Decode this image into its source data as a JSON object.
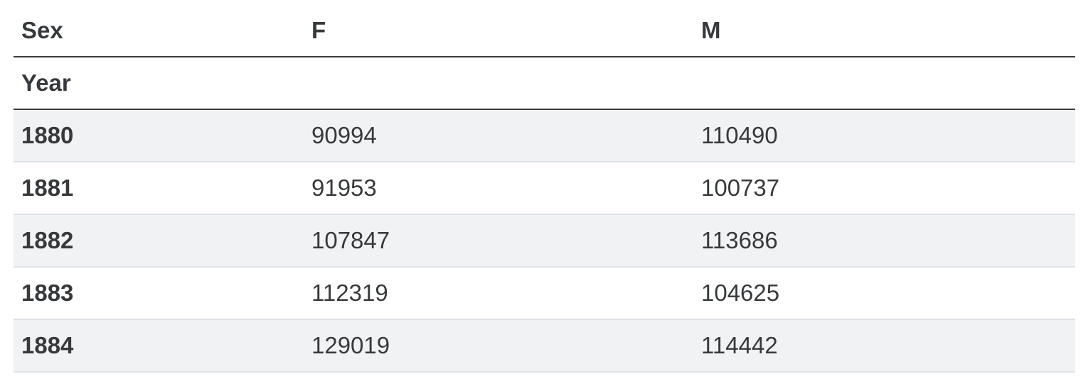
{
  "colors": {
    "text": "#373a3c",
    "dark_border": "#3b3b3d",
    "light_border": "#dee2e6",
    "stripe": "#f1f2f3",
    "background": "#ffffff"
  },
  "chart_data": {
    "type": "table",
    "title": "",
    "columns_axis_label": "Sex",
    "index_label": "Year",
    "columns": [
      "F",
      "M"
    ],
    "index": [
      "1880",
      "1881",
      "1882",
      "1883",
      "1884"
    ],
    "rows": [
      [
        90994,
        110490
      ],
      [
        91953,
        100737
      ],
      [
        107847,
        113686
      ],
      [
        112319,
        104625
      ],
      [
        129019,
        114442
      ]
    ],
    "layout": {
      "grid": "horizontal-rules-only",
      "striped_rows": "odd",
      "header_rule": "dark",
      "index_name_rule": "dark"
    }
  }
}
